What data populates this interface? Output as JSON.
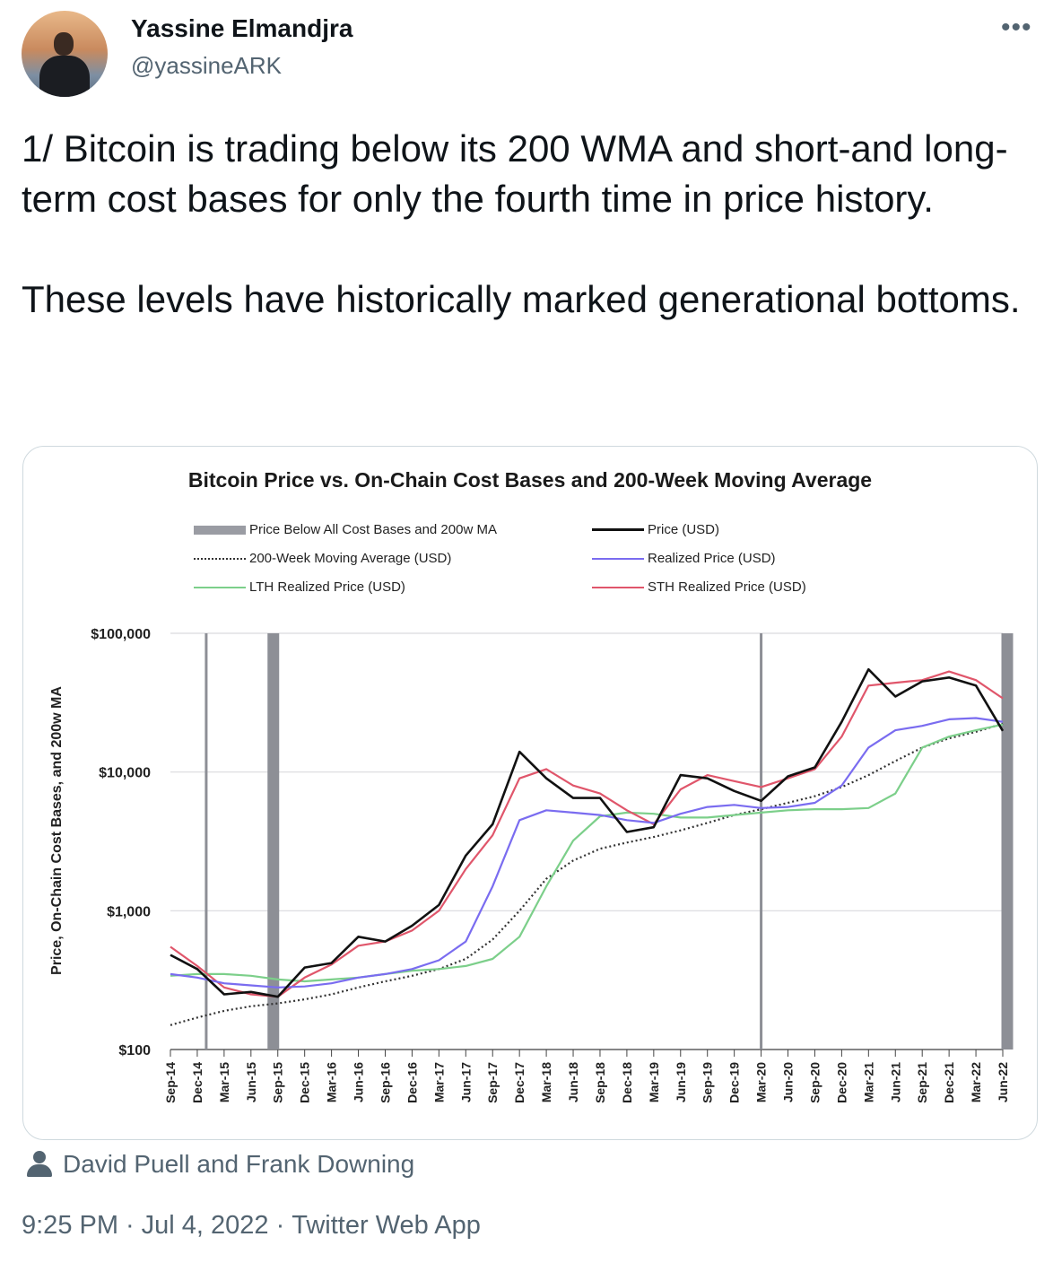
{
  "author": {
    "name": "Yassine Elmandjra",
    "handle": "@yassineARK"
  },
  "more_icon": "•••",
  "tweet": {
    "text": "1/ Bitcoin is trading below its 200 WMA and short-and long-term cost bases for only the fourth time in price history.\n\nThese levels have historically marked generational bottoms."
  },
  "footer": {
    "attribution": "David Puell and Frank Downing",
    "time": "9:25 PM",
    "date": "Jul 4, 2022",
    "client": "Twitter Web App",
    "separator": "·"
  },
  "chart_data": {
    "type": "line",
    "title": "Bitcoin Price vs. On-Chain Cost Bases and 200-Week Moving Average",
    "ylabel": "Price, On-Chain Cost Bases, and 200w MA",
    "xlabel": "",
    "yscale": "log",
    "ylim": [
      100,
      100000
    ],
    "y_ticks": [
      "$100",
      "$1,000",
      "$10,000",
      "$100,000"
    ],
    "y_tick_values": [
      100,
      1000,
      10000,
      100000
    ],
    "x": [
      "Sep-14",
      "Dec-14",
      "Mar-15",
      "Jun-15",
      "Sep-15",
      "Dec-15",
      "Mar-16",
      "Jun-16",
      "Sep-16",
      "Dec-16",
      "Mar-17",
      "Jun-17",
      "Sep-17",
      "Dec-17",
      "Mar-18",
      "Jun-18",
      "Sep-18",
      "Dec-18",
      "Mar-19",
      "Jun-19",
      "Sep-19",
      "Dec-19",
      "Mar-20",
      "Jun-20",
      "Sep-20",
      "Dec-20",
      "Mar-21",
      "Jun-21",
      "Sep-21",
      "Dec-21",
      "Mar-22",
      "Jun-22"
    ],
    "legend": [
      {
        "label": "Price Below All Cost Bases and 200w MA",
        "color": "#9a9ca3",
        "style": "band"
      },
      {
        "label": "200-Week Moving Average (USD)",
        "color": "#333333",
        "style": "dotted"
      },
      {
        "label": "LTH Realized Price (USD)",
        "color": "#7ccf8a",
        "style": "solid"
      },
      {
        "label": "Price (USD)",
        "color": "#111111",
        "style": "solid"
      },
      {
        "label": "Realized Price (USD)",
        "color": "#7a6cf0",
        "style": "solid"
      },
      {
        "label": "STH Realized Price (USD)",
        "color": "#e0566b",
        "style": "solid"
      }
    ],
    "bands": [
      {
        "start": "Jan-15",
        "end": "Jan-15"
      },
      {
        "start": "Aug-15",
        "end": "Sep-15"
      },
      {
        "start": "Mar-20",
        "end": "Mar-20"
      },
      {
        "start": "Jun-22",
        "end": "Jul-22"
      }
    ],
    "series": [
      {
        "name": "Price (USD)",
        "color": "#111111",
        "dash": "",
        "values": [
          480,
          380,
          250,
          260,
          240,
          390,
          420,
          650,
          600,
          780,
          1100,
          2500,
          4200,
          14000,
          9000,
          6500,
          6500,
          3700,
          4000,
          9500,
          9000,
          7300,
          6200,
          9300,
          10800,
          23000,
          55000,
          35000,
          45000,
          48000,
          42000,
          19800
        ]
      },
      {
        "name": "200-Week Moving Average (USD)",
        "color": "#333333",
        "dash": "2,3",
        "values": [
          150,
          170,
          190,
          205,
          215,
          230,
          250,
          280,
          310,
          340,
          380,
          450,
          620,
          1000,
          1700,
          2300,
          2800,
          3100,
          3400,
          3800,
          4300,
          4900,
          5400,
          6000,
          6700,
          7800,
          9500,
          12000,
          15000,
          17500,
          19500,
          22300
        ]
      },
      {
        "name": "LTH Realized Price (USD)",
        "color": "#7ccf8a",
        "dash": "",
        "values": [
          340,
          350,
          350,
          340,
          320,
          310,
          320,
          330,
          350,
          370,
          380,
          400,
          450,
          650,
          1500,
          3200,
          4800,
          5100,
          5000,
          4700,
          4700,
          4900,
          5100,
          5300,
          5400,
          5400,
          5500,
          7000,
          15000,
          18000,
          20000,
          22000
        ]
      },
      {
        "name": "Realized Price (USD)",
        "color": "#7a6cf0",
        "dash": "",
        "values": [
          350,
          330,
          300,
          290,
          280,
          285,
          300,
          330,
          350,
          380,
          440,
          600,
          1500,
          4500,
          5300,
          5100,
          4900,
          4500,
          4300,
          5000,
          5600,
          5800,
          5500,
          5600,
          6000,
          8000,
          15000,
          20000,
          21500,
          24000,
          24500,
          23000
        ]
      },
      {
        "name": "STH Realized Price (USD)",
        "color": "#e0566b",
        "dash": "",
        "values": [
          550,
          400,
          280,
          250,
          240,
          330,
          410,
          560,
          600,
          720,
          1000,
          2000,
          3500,
          9000,
          10500,
          8000,
          7000,
          5300,
          4200,
          7500,
          9500,
          8600,
          7800,
          9000,
          10500,
          18000,
          42000,
          44000,
          46000,
          53000,
          46000,
          34000
        ]
      }
    ]
  }
}
